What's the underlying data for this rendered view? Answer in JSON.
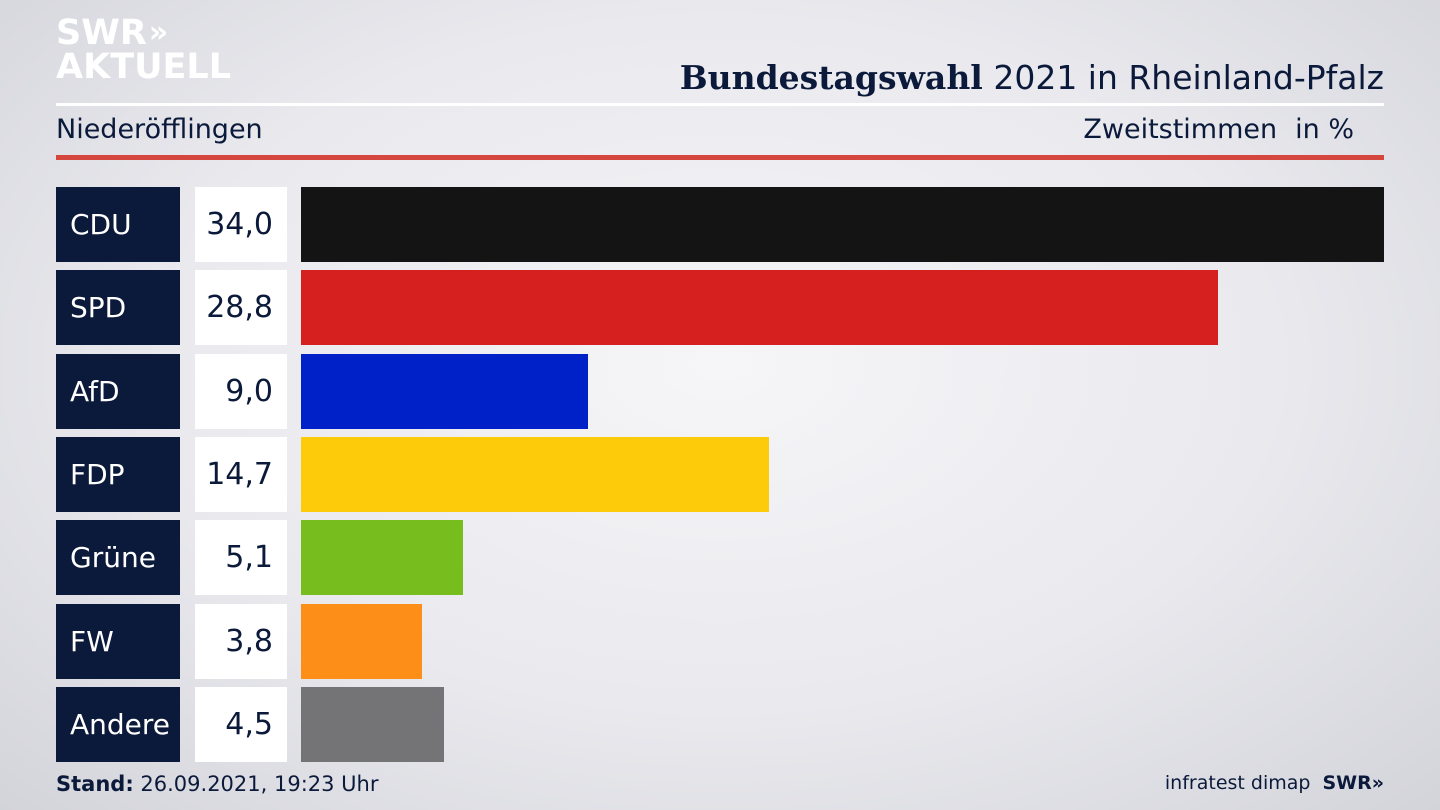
{
  "header": {
    "logo_line1": "SWR",
    "logo_chevrons": "»",
    "logo_line2": "AKTUELL",
    "headline_bold": "Bundestagswahl",
    "headline_rest": " 2021 in Rheinland-Pfalz",
    "subtitle": "Niederöfflingen",
    "measure": "Zweitstimmen",
    "unit": "in %"
  },
  "colors": {
    "accent_red": "#d5473e",
    "label_bg": "#0b1a3a"
  },
  "chart_data": {
    "type": "bar",
    "orientation": "horizontal",
    "categories": [
      "CDU",
      "SPD",
      "AfD",
      "FDP",
      "Grüne",
      "FW",
      "Andere"
    ],
    "values": [
      34.0,
      28.8,
      9.0,
      14.7,
      5.1,
      3.8,
      4.5
    ],
    "value_labels": [
      "34,0",
      "28,8",
      "9,0",
      "14,7",
      "5,1",
      "3,8",
      "4,5"
    ],
    "colors": [
      "#141414",
      "#d6201f",
      "#0021c8",
      "#fecb0a",
      "#78bd1e",
      "#fd8f19",
      "#747476"
    ],
    "xlim": [
      0,
      34.0
    ]
  },
  "footer": {
    "stand_label": "Stand:",
    "stand_value": " 26.09.2021, 19:23 Uhr",
    "source": "infratest dimap",
    "brand": "SWR»"
  }
}
